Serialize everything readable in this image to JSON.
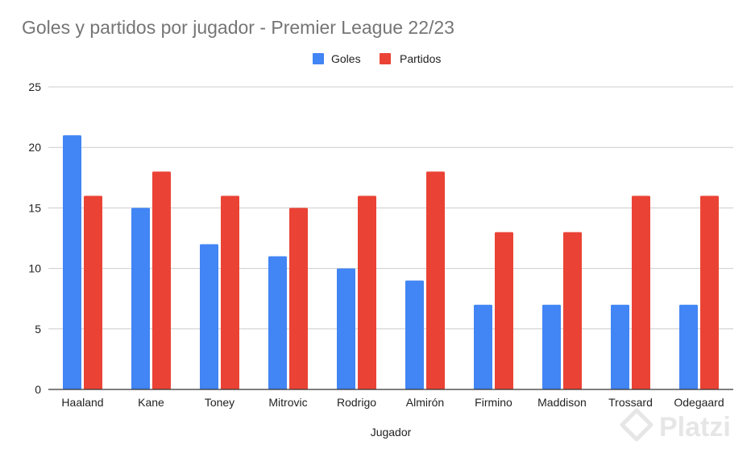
{
  "chart_data": {
    "type": "bar",
    "title": "Goles y partidos por jugador - Premier League 22/23",
    "xlabel": "Jugador",
    "ylabel": "",
    "ylim": [
      0,
      25
    ],
    "yticks": [
      0,
      5,
      10,
      15,
      20,
      25
    ],
    "grid": true,
    "legend_position": "top",
    "categories": [
      "Haaland",
      "Kane",
      "Toney",
      "Mitrovic",
      "Rodrigo",
      "Almirón",
      "Firmino",
      "Maddison",
      "Trossard",
      "Odegaard"
    ],
    "series": [
      {
        "name": "Goles",
        "color": "#4285f4",
        "values": [
          21,
          15,
          12,
          11,
          10,
          9,
          7,
          7,
          7,
          7
        ]
      },
      {
        "name": "Partidos",
        "color": "#ea4335",
        "values": [
          16,
          18,
          16,
          15,
          16,
          18,
          13,
          13,
          16,
          16
        ]
      }
    ]
  },
  "watermark": {
    "text": "Platzi",
    "icon": "platzi-logo-icon"
  }
}
